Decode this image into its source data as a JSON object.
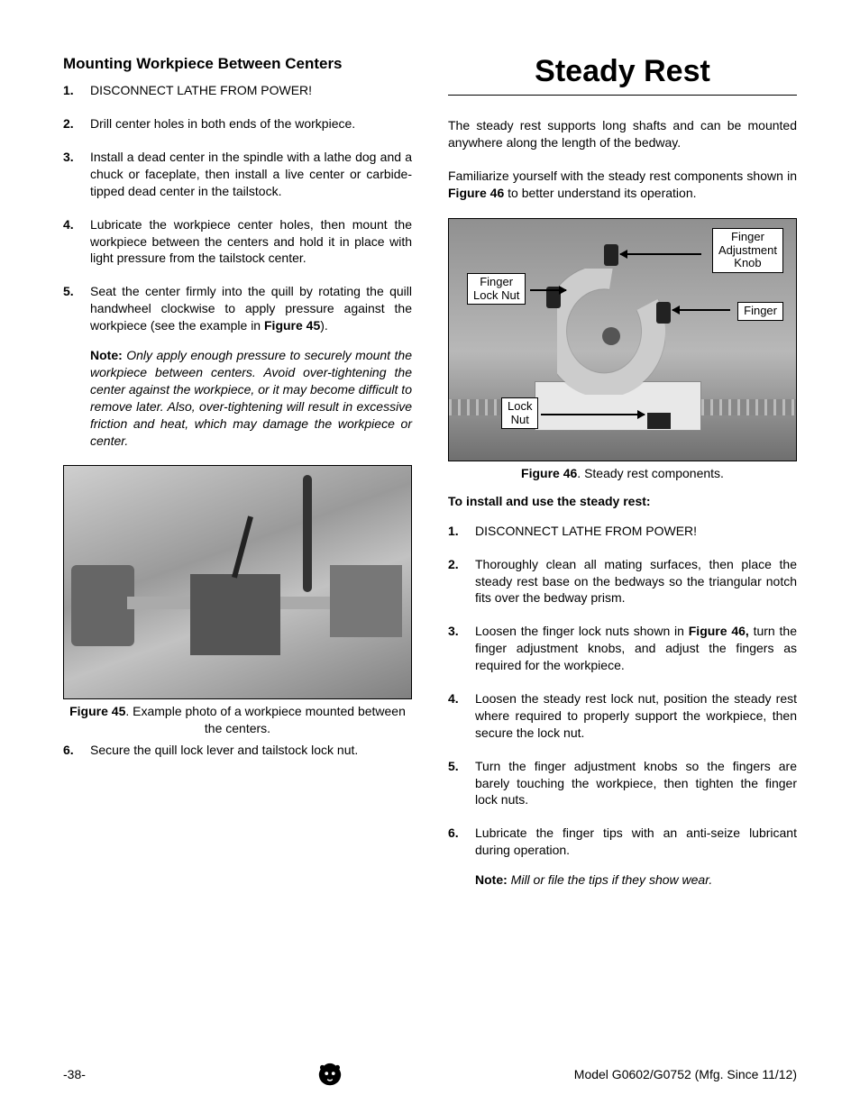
{
  "left": {
    "heading": "Mounting Workpiece Between Centers",
    "steps_a": [
      "DISCONNECT LATHE FROM POWER!",
      "Drill center holes in both ends of the workpiece.",
      "Install a dead center in the spindle with a lathe dog and a chuck or faceplate, then install a live center or carbide-tipped dead center in the tailstock.",
      "Lubricate the workpiece center holes, then mount the workpiece between the centers and hold it in place with light pressure from the tailstock center."
    ],
    "step5_pre": "Seat the center firmly into the quill by rotating the quill handwheel clockwise to apply pressure against the workpiece (see the example in ",
    "step5_figref": "Figure 45",
    "step5_post": ").",
    "note_label": "Note:",
    "note_text": " Only apply enough pressure to securely mount the workpiece between centers. Avoid over-tightening the center against the workpiece, or it may become difficult to remove later. Also, over-tightening will result in excessive friction and heat, which may damage the workpiece or center.",
    "fig45_label": "Figure 45",
    "fig45_caption": ". Example photo of a workpiece mounted between the centers.",
    "step6": "Secure the quill lock lever and tailstock lock nut."
  },
  "right": {
    "title": "Steady Rest",
    "intro1": "The steady rest supports long shafts and can be mounted anywhere along the length of the bedway.",
    "intro2_pre": "Familiarize yourself with the steady rest components shown in ",
    "intro2_ref": "Figure 46",
    "intro2_post": " to better understand its operation.",
    "callouts": {
      "finger_lock_nut": "Finger\nLock Nut",
      "finger_adj_knob": "Finger\nAdjustment\nKnob",
      "finger": "Finger",
      "lock_nut": "Lock\nNut"
    },
    "fig46_label": "Figure 46",
    "fig46_caption": ". Steady rest components.",
    "subheading": "To install and use the steady rest:",
    "steps": {
      "s1": "DISCONNECT LATHE FROM POWER!",
      "s2": "Thoroughly clean all mating surfaces, then place the steady rest base on the bedways so the triangular notch fits over the bedway prism.",
      "s3_pre": "Loosen the finger lock nuts shown in ",
      "s3_ref": "Figure 46,",
      "s3_post": " turn the finger adjustment knobs, and adjust the fingers as required for the workpiece.",
      "s4": "Loosen the steady rest lock nut, position the steady rest where required to properly support the workpiece, then secure the lock nut.",
      "s5": "Turn the finger adjustment knobs so the fingers are barely touching the workpiece, then tighten the finger lock nuts.",
      "s6": "Lubricate the finger tips with an anti-seize lubricant during operation."
    },
    "note_label": "Note:",
    "note_text": " Mill or file the tips if they show wear."
  },
  "footer": {
    "page": "-38-",
    "model": "Model G0602/G0752 (Mfg. Since 11/12)"
  }
}
